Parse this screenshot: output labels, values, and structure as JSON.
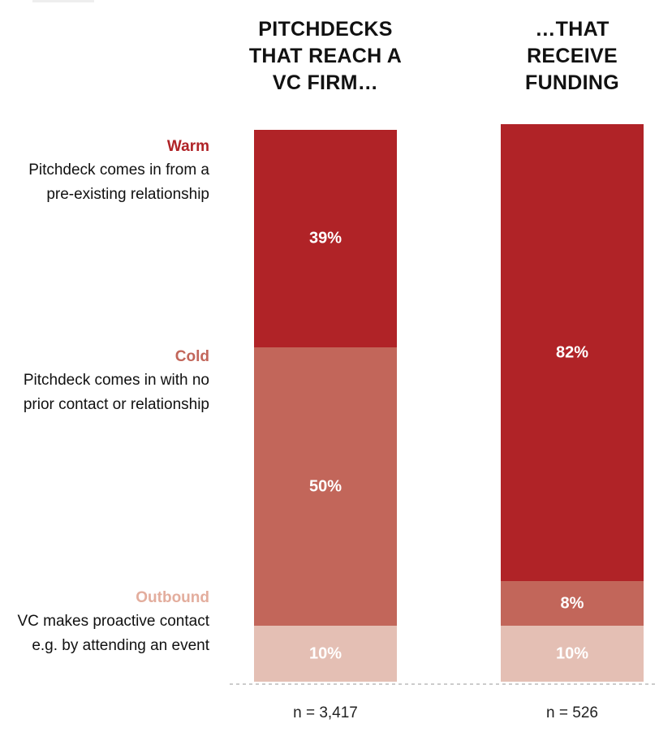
{
  "chart_data": {
    "type": "stacked-bar",
    "categories": [
      "PITCHDECKS THAT REACH A VC FIRM…",
      "…THAT RECEIVE FUNDING"
    ],
    "sample_sizes": [
      "n = 3,417",
      "n = 526"
    ],
    "series": [
      {
        "name": "Warm",
        "description": "Pitchdeck comes in from a pre-existing relationship",
        "color": "#b02327",
        "values": [
          39,
          82
        ],
        "value_labels": [
          "39%",
          "82%"
        ]
      },
      {
        "name": "Cold",
        "description": "Pitchdeck comes in with no prior contact or relationship",
        "color": "#c2665a",
        "values": [
          50,
          8
        ],
        "value_labels": [
          "50%",
          "8%"
        ]
      },
      {
        "name": "Outbound",
        "description": "VC makes proactive contact e.g. by attending an event",
        "color": "#e4bfb4",
        "label_color": "#e3ad9d",
        "values": [
          10,
          10
        ],
        "value_labels": [
          "10%",
          "10%"
        ]
      }
    ],
    "ylim": [
      0,
      100
    ]
  }
}
